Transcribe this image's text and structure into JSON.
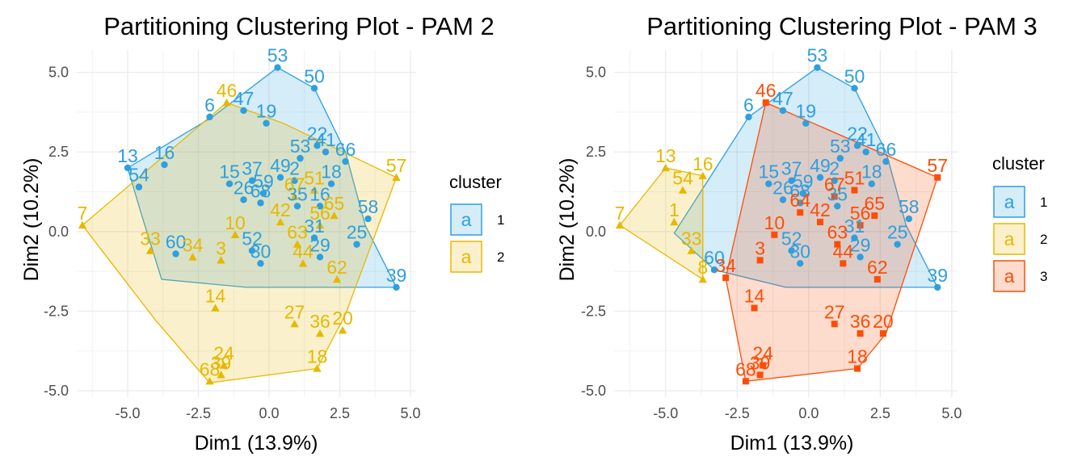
{
  "colors": {
    "c1": "#2E9FDF",
    "c2": "#E7B800",
    "c3": "#FC4E07"
  },
  "legend": {
    "title": "cluster",
    "glyph": "a"
  },
  "chart_data": [
    {
      "type": "scatter",
      "title": "Partitioning Clustering Plot - PAM 2",
      "xlabel": "Dim1 (13.9%)",
      "ylabel": "Dim2 (10.2%)",
      "xlim": [
        -6.8,
        5.2
      ],
      "ylim": [
        -5.2,
        5.7
      ],
      "xticks": [
        -5.0,
        -2.5,
        0.0,
        2.5,
        5.0
      ],
      "xtick_labels": [
        "-5.0",
        "-2.5",
        "0.0",
        "2.5",
        "5.0"
      ],
      "yticks": [
        -5.0,
        -2.5,
        0.0,
        2.5,
        5.0
      ],
      "ytick_labels": [
        "-5.0",
        "-2.5",
        "0.0",
        "2.5",
        "5.0"
      ],
      "legend": {
        "title": "cluster",
        "items": [
          "1",
          "2"
        ],
        "position": "right"
      },
      "hulls": [
        {
          "cluster": "1",
          "points": [
            [
              0.3,
              5.15
            ],
            [
              1.6,
              4.5
            ],
            [
              2.7,
              2.5
            ],
            [
              3.4,
              0.2
            ],
            [
              4.5,
              -1.75
            ],
            [
              -0.8,
              -1.75
            ],
            [
              -3.8,
              -1.5
            ],
            [
              -4.5,
              0.5
            ],
            [
              -5.0,
              2.0
            ],
            [
              -2.0,
              3.6
            ]
          ]
        },
        {
          "cluster": "2",
          "points": [
            [
              -1.5,
              4.05
            ],
            [
              0.5,
              3.4
            ],
            [
              4.5,
              1.7
            ],
            [
              2.7,
              -2.6
            ],
            [
              1.7,
              -4.3
            ],
            [
              -2.1,
              -4.75
            ],
            [
              -4.0,
              -2.8
            ],
            [
              -6.6,
              0.2
            ]
          ]
        }
      ],
      "points": [
        {
          "label": "53",
          "x": 0.3,
          "y": 5.15,
          "cluster": "1"
        },
        {
          "label": "50",
          "x": 1.6,
          "y": 4.5,
          "cluster": "1"
        },
        {
          "label": "6",
          "x": -2.1,
          "y": 3.6,
          "cluster": "1"
        },
        {
          "label": "47",
          "x": -0.9,
          "y": 3.8,
          "cluster": "1"
        },
        {
          "label": "19",
          "x": -0.1,
          "y": 3.4,
          "cluster": "1"
        },
        {
          "label": "13",
          "x": -5.0,
          "y": 2.0,
          "cluster": "1"
        },
        {
          "label": "16",
          "x": -3.7,
          "y": 2.1,
          "cluster": "1"
        },
        {
          "label": "22",
          "x": 1.7,
          "y": 2.7,
          "cluster": "1"
        },
        {
          "label": "53",
          "x": 1.1,
          "y": 2.3,
          "cluster": "1"
        },
        {
          "label": "41",
          "x": 2.0,
          "y": 2.5,
          "cluster": "1"
        },
        {
          "label": "66",
          "x": 2.7,
          "y": 2.2,
          "cluster": "1"
        },
        {
          "label": "54",
          "x": -4.6,
          "y": 1.4,
          "cluster": "1"
        },
        {
          "label": "15",
          "x": -1.4,
          "y": 1.5,
          "cluster": "1"
        },
        {
          "label": "37",
          "x": -0.6,
          "y": 1.6,
          "cluster": "1"
        },
        {
          "label": "49",
          "x": 0.4,
          "y": 1.7,
          "cluster": "1"
        },
        {
          "label": "2",
          "x": 0.9,
          "y": 1.6,
          "cluster": "1"
        },
        {
          "label": "59",
          "x": -0.2,
          "y": 1.2,
          "cluster": "1"
        },
        {
          "label": "18",
          "x": 2.2,
          "y": 1.5,
          "cluster": "1"
        },
        {
          "label": "26",
          "x": -0.9,
          "y": 1.0,
          "cluster": "1"
        },
        {
          "label": "68",
          "x": -0.3,
          "y": 0.9,
          "cluster": "1"
        },
        {
          "label": "35",
          "x": 1.0,
          "y": 0.8,
          "cluster": "1"
        },
        {
          "label": "16",
          "x": 1.8,
          "y": 0.8,
          "cluster": "1"
        },
        {
          "label": "58",
          "x": 3.5,
          "y": 0.4,
          "cluster": "1"
        },
        {
          "label": "31",
          "x": 1.6,
          "y": -0.2,
          "cluster": "1"
        },
        {
          "label": "25",
          "x": 3.1,
          "y": -0.4,
          "cluster": "1"
        },
        {
          "label": "52",
          "x": -0.6,
          "y": -0.6,
          "cluster": "1"
        },
        {
          "label": "30",
          "x": -0.3,
          "y": -1.0,
          "cluster": "1"
        },
        {
          "label": "60",
          "x": -3.3,
          "y": -0.7,
          "cluster": "1"
        },
        {
          "label": "29",
          "x": 1.8,
          "y": -0.8,
          "cluster": "1"
        },
        {
          "label": "39",
          "x": 4.5,
          "y": -1.75,
          "cluster": "1"
        },
        {
          "label": "46",
          "x": -1.5,
          "y": 4.05,
          "cluster": "2"
        },
        {
          "label": "57",
          "x": 4.5,
          "y": 1.7,
          "cluster": "2"
        },
        {
          "label": "7",
          "x": -6.6,
          "y": 0.2,
          "cluster": "2"
        },
        {
          "label": "51",
          "x": 1.6,
          "y": 1.3,
          "cluster": "2"
        },
        {
          "label": "67",
          "x": 0.9,
          "y": 1.1,
          "cluster": "2"
        },
        {
          "label": "65",
          "x": 2.3,
          "y": 0.5,
          "cluster": "2"
        },
        {
          "label": "42",
          "x": 0.4,
          "y": 0.3,
          "cluster": "2"
        },
        {
          "label": "56",
          "x": 1.8,
          "y": 0.2,
          "cluster": "2"
        },
        {
          "label": "10",
          "x": -1.2,
          "y": -0.1,
          "cluster": "2"
        },
        {
          "label": "33",
          "x": -4.2,
          "y": -0.6,
          "cluster": "2"
        },
        {
          "label": "34",
          "x": -2.7,
          "y": -0.8,
          "cluster": "2"
        },
        {
          "label": "3",
          "x": -1.7,
          "y": -0.9,
          "cluster": "2"
        },
        {
          "label": "63",
          "x": 1.0,
          "y": -0.4,
          "cluster": "2"
        },
        {
          "label": "44",
          "x": 1.2,
          "y": -1.0,
          "cluster": "2"
        },
        {
          "label": "62",
          "x": 2.4,
          "y": -1.5,
          "cluster": "2"
        },
        {
          "label": "14",
          "x": -1.9,
          "y": -2.4,
          "cluster": "2"
        },
        {
          "label": "27",
          "x": 0.9,
          "y": -2.9,
          "cluster": "2"
        },
        {
          "label": "36",
          "x": 1.8,
          "y": -3.2,
          "cluster": "2"
        },
        {
          "label": "20",
          "x": 2.6,
          "y": -3.1,
          "cluster": "2"
        },
        {
          "label": "18",
          "x": 1.7,
          "y": -4.3,
          "cluster": "2"
        },
        {
          "label": "24",
          "x": -1.6,
          "y": -4.2,
          "cluster": "2"
        },
        {
          "label": "68",
          "x": -2.1,
          "y": -4.7,
          "cluster": "2"
        },
        {
          "label": "39",
          "x": -1.7,
          "y": -4.5,
          "cluster": "2"
        }
      ]
    },
    {
      "type": "scatter",
      "title": "Partitioning Clustering Plot - PAM 3",
      "xlabel": "Dim1 (13.9%)",
      "ylabel": "Dim2 (10.2%)",
      "xlim": [
        -6.8,
        5.2
      ],
      "ylim": [
        -5.2,
        5.7
      ],
      "xticks": [
        -5.0,
        -2.5,
        0.0,
        2.5,
        5.0
      ],
      "xtick_labels": [
        "-5.0",
        "-2.5",
        "0.0",
        "2.5",
        "5.0"
      ],
      "yticks": [
        -5.0,
        -2.5,
        0.0,
        2.5,
        5.0
      ],
      "ytick_labels": [
        "-5.0",
        "-2.5",
        "0.0",
        "2.5",
        "5.0"
      ],
      "legend": {
        "title": "cluster",
        "items": [
          "1",
          "2",
          "3"
        ],
        "position": "right"
      },
      "hulls": [
        {
          "cluster": "1",
          "points": [
            [
              0.3,
              5.15
            ],
            [
              1.6,
              4.5
            ],
            [
              2.7,
              2.5
            ],
            [
              3.4,
              0.2
            ],
            [
              4.5,
              -1.75
            ],
            [
              -0.8,
              -1.75
            ],
            [
              -3.3,
              -1.2
            ],
            [
              -4.7,
              -0.05
            ],
            [
              -2.1,
              3.6
            ]
          ]
        },
        {
          "cluster": "2",
          "points": [
            [
              -5.0,
              2.0
            ],
            [
              -3.7,
              1.75
            ],
            [
              -3.7,
              -1.5
            ],
            [
              -6.6,
              0.2
            ]
          ]
        },
        {
          "cluster": "3",
          "points": [
            [
              -1.5,
              4.05
            ],
            [
              4.5,
              1.7
            ],
            [
              2.7,
              -3.2
            ],
            [
              1.7,
              -4.3
            ],
            [
              -2.2,
              -4.7
            ],
            [
              -2.9,
              -1.45
            ]
          ]
        }
      ],
      "points": [
        {
          "label": "53",
          "x": 0.3,
          "y": 5.15,
          "cluster": "1"
        },
        {
          "label": "50",
          "x": 1.6,
          "y": 4.5,
          "cluster": "1"
        },
        {
          "label": "6",
          "x": -2.1,
          "y": 3.6,
          "cluster": "1"
        },
        {
          "label": "47",
          "x": -0.9,
          "y": 3.8,
          "cluster": "1"
        },
        {
          "label": "19",
          "x": -0.1,
          "y": 3.4,
          "cluster": "1"
        },
        {
          "label": "22",
          "x": 1.7,
          "y": 2.7,
          "cluster": "1"
        },
        {
          "label": "53",
          "x": 1.1,
          "y": 2.3,
          "cluster": "1"
        },
        {
          "label": "41",
          "x": 2.0,
          "y": 2.5,
          "cluster": "1"
        },
        {
          "label": "66",
          "x": 2.7,
          "y": 2.2,
          "cluster": "1"
        },
        {
          "label": "15",
          "x": -1.4,
          "y": 1.5,
          "cluster": "1"
        },
        {
          "label": "37",
          "x": -0.6,
          "y": 1.6,
          "cluster": "1"
        },
        {
          "label": "49",
          "x": 0.4,
          "y": 1.7,
          "cluster": "1"
        },
        {
          "label": "2",
          "x": 0.9,
          "y": 1.6,
          "cluster": "1"
        },
        {
          "label": "59",
          "x": -0.2,
          "y": 1.2,
          "cluster": "1"
        },
        {
          "label": "18",
          "x": 2.2,
          "y": 1.5,
          "cluster": "1"
        },
        {
          "label": "26",
          "x": -0.9,
          "y": 1.0,
          "cluster": "1"
        },
        {
          "label": "68",
          "x": -0.3,
          "y": 0.9,
          "cluster": "1"
        },
        {
          "label": "35",
          "x": 1.0,
          "y": 0.8,
          "cluster": "1"
        },
        {
          "label": "58",
          "x": 3.5,
          "y": 0.4,
          "cluster": "1"
        },
        {
          "label": "31",
          "x": 1.6,
          "y": -0.2,
          "cluster": "1"
        },
        {
          "label": "25",
          "x": 3.1,
          "y": -0.4,
          "cluster": "1"
        },
        {
          "label": "52",
          "x": -0.6,
          "y": -0.6,
          "cluster": "1"
        },
        {
          "label": "30",
          "x": -0.3,
          "y": -1.0,
          "cluster": "1"
        },
        {
          "label": "60",
          "x": -3.3,
          "y": -1.2,
          "cluster": "1"
        },
        {
          "label": "29",
          "x": 1.8,
          "y": -0.8,
          "cluster": "1"
        },
        {
          "label": "39",
          "x": 4.5,
          "y": -1.75,
          "cluster": "1"
        },
        {
          "label": "13",
          "x": -5.0,
          "y": 2.0,
          "cluster": "2"
        },
        {
          "label": "16",
          "x": -3.7,
          "y": 1.75,
          "cluster": "2"
        },
        {
          "label": "54",
          "x": -4.4,
          "y": 1.3,
          "cluster": "2"
        },
        {
          "label": "7",
          "x": -6.6,
          "y": 0.2,
          "cluster": "2"
        },
        {
          "label": "1",
          "x": -4.7,
          "y": 0.3,
          "cluster": "2"
        },
        {
          "label": "33",
          "x": -4.1,
          "y": -0.6,
          "cluster": "2"
        },
        {
          "label": "8",
          "x": -3.7,
          "y": -1.5,
          "cluster": "2"
        },
        {
          "label": "46",
          "x": -1.5,
          "y": 4.05,
          "cluster": "3"
        },
        {
          "label": "57",
          "x": 4.5,
          "y": 1.7,
          "cluster": "3"
        },
        {
          "label": "51",
          "x": 1.6,
          "y": 1.3,
          "cluster": "3"
        },
        {
          "label": "67",
          "x": 0.9,
          "y": 1.1,
          "cluster": "3"
        },
        {
          "label": "65",
          "x": 2.3,
          "y": 0.5,
          "cluster": "3"
        },
        {
          "label": "64",
          "x": -0.3,
          "y": 0.6,
          "cluster": "3"
        },
        {
          "label": "42",
          "x": 0.4,
          "y": 0.3,
          "cluster": "3"
        },
        {
          "label": "56",
          "x": 1.8,
          "y": 0.2,
          "cluster": "3"
        },
        {
          "label": "10",
          "x": -1.2,
          "y": -0.1,
          "cluster": "3"
        },
        {
          "label": "34",
          "x": -2.9,
          "y": -1.45,
          "cluster": "3"
        },
        {
          "label": "3",
          "x": -1.7,
          "y": -0.9,
          "cluster": "3"
        },
        {
          "label": "63",
          "x": 1.0,
          "y": -0.4,
          "cluster": "3"
        },
        {
          "label": "44",
          "x": 1.2,
          "y": -1.0,
          "cluster": "3"
        },
        {
          "label": "62",
          "x": 2.4,
          "y": -1.5,
          "cluster": "3"
        },
        {
          "label": "14",
          "x": -1.9,
          "y": -2.4,
          "cluster": "3"
        },
        {
          "label": "27",
          "x": 0.9,
          "y": -2.9,
          "cluster": "3"
        },
        {
          "label": "36",
          "x": 1.8,
          "y": -3.2,
          "cluster": "3"
        },
        {
          "label": "20",
          "x": 2.6,
          "y": -3.2,
          "cluster": "3"
        },
        {
          "label": "18",
          "x": 1.7,
          "y": -4.3,
          "cluster": "3"
        },
        {
          "label": "24",
          "x": -1.6,
          "y": -4.2,
          "cluster": "3"
        },
        {
          "label": "68",
          "x": -2.2,
          "y": -4.7,
          "cluster": "3"
        },
        {
          "label": "39",
          "x": -1.7,
          "y": -4.5,
          "cluster": "3"
        }
      ]
    }
  ]
}
